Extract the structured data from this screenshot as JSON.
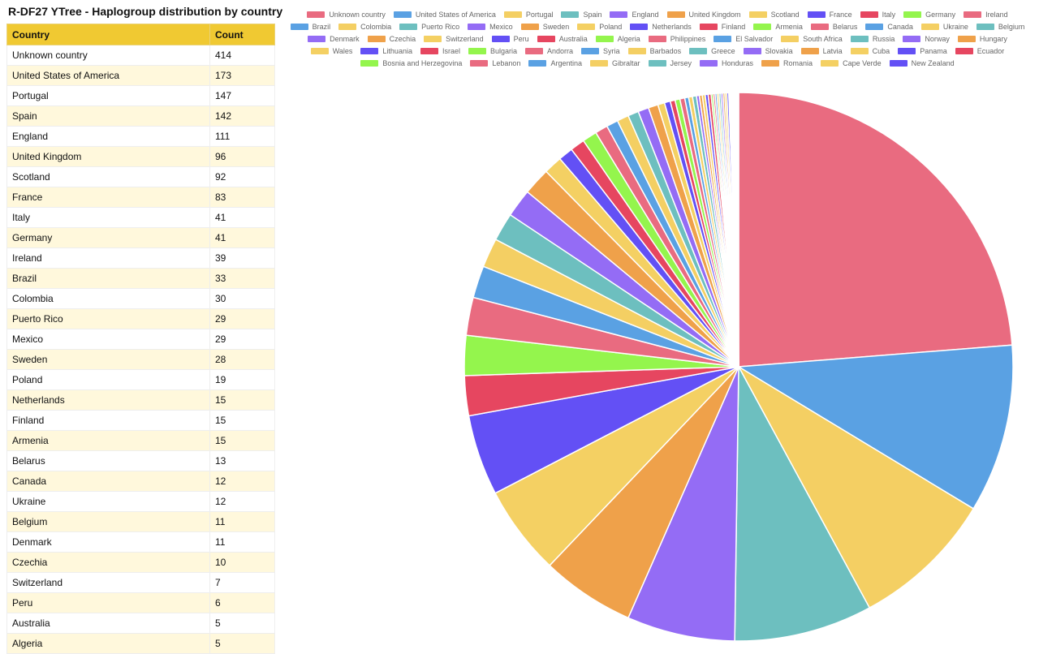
{
  "page_title": "R-DF27 YTree - Haplogroup distribution by country",
  "table": {
    "headers": [
      "Country",
      "Count"
    ],
    "rows": [
      [
        "Unknown country",
        414
      ],
      [
        "United States of America",
        173
      ],
      [
        "Portugal",
        147
      ],
      [
        "Spain",
        142
      ],
      [
        "England",
        111
      ],
      [
        "United Kingdom",
        96
      ],
      [
        "Scotland",
        92
      ],
      [
        "France",
        83
      ],
      [
        "Italy",
        41
      ],
      [
        "Germany",
        41
      ],
      [
        "Ireland",
        39
      ],
      [
        "Brazil",
        33
      ],
      [
        "Colombia",
        30
      ],
      [
        "Puerto Rico",
        29
      ],
      [
        "Mexico",
        29
      ],
      [
        "Sweden",
        28
      ],
      [
        "Poland",
        19
      ],
      [
        "Netherlands",
        15
      ],
      [
        "Finland",
        15
      ],
      [
        "Armenia",
        15
      ],
      [
        "Belarus",
        13
      ],
      [
        "Canada",
        12
      ],
      [
        "Ukraine",
        12
      ],
      [
        "Belgium",
        11
      ],
      [
        "Denmark",
        11
      ],
      [
        "Czechia",
        10
      ],
      [
        "Switzerland",
        7
      ],
      [
        "Peru",
        6
      ],
      [
        "Australia",
        5
      ],
      [
        "Algeria",
        5
      ]
    ]
  },
  "chart_data": {
    "type": "pie",
    "title": "",
    "legend_position": "top",
    "start_angle": "top, clockwise",
    "colors": [
      "#e96b80",
      "#5aa1e3",
      "#f4cf63",
      "#6dbfbf",
      "#946cf5",
      "#efa14a",
      "#f4d063",
      "#6350f5",
      "#e64660",
      "#94f54d"
    ],
    "labels": [
      "Unknown country",
      "United States of America",
      "Portugal",
      "Spain",
      "England",
      "United Kingdom",
      "Scotland",
      "France",
      "Italy",
      "Germany",
      "Ireland",
      "Brazil",
      "Colombia",
      "Puerto Rico",
      "Mexico",
      "Sweden",
      "Poland",
      "Netherlands",
      "Finland",
      "Armenia",
      "Belarus",
      "Canada",
      "Ukraine",
      "Belgium",
      "Denmark",
      "Czechia",
      "Switzerland",
      "Peru",
      "Australia",
      "Algeria",
      "Philippines",
      "El Salvador",
      "South Africa",
      "Russia",
      "Norway",
      "Hungary",
      "Wales",
      "Lithuania",
      "Israel",
      "Bulgaria",
      "Andorra",
      "Syria",
      "Barbados",
      "Greece",
      "Slovakia",
      "Latvia",
      "Cuba",
      "Panama",
      "Ecuador",
      "Bosnia and Herzegovina",
      "Lebanon",
      "Argentina",
      "Gibraltar",
      "Jersey",
      "Honduras",
      "Romania",
      "Cape Verde",
      "New Zealand"
    ],
    "values": [
      414,
      173,
      147,
      142,
      111,
      96,
      92,
      83,
      41,
      41,
      39,
      33,
      30,
      29,
      29,
      28,
      19,
      15,
      15,
      15,
      13,
      12,
      12,
      11,
      11,
      10,
      7,
      6,
      5,
      5,
      5,
      4,
      4,
      4,
      3,
      3,
      3,
      3,
      3,
      2,
      2,
      2,
      2,
      2,
      2,
      2,
      2,
      2,
      1,
      1,
      1,
      1,
      1,
      1,
      1,
      1,
      1,
      1
    ]
  }
}
